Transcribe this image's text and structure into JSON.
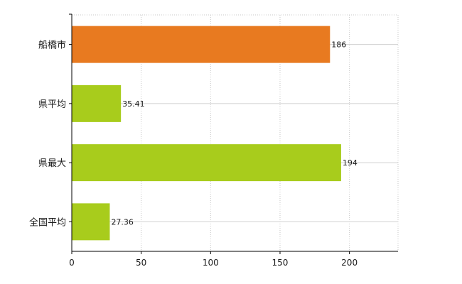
{
  "chart_data": {
    "type": "bar",
    "orientation": "horizontal",
    "categories": [
      "船橋市",
      "県平均",
      "県最大",
      "全国平均"
    ],
    "values": [
      186,
      35.41,
      194,
      27.36
    ],
    "value_labels": [
      "186",
      "35.41",
      "194",
      "27.36"
    ],
    "bar_colors": [
      "#e87a20",
      "#a8cc1c",
      "#a8cc1c",
      "#a8cc1c"
    ],
    "title": "",
    "xlabel": "",
    "ylabel": "",
    "xlim": [
      0,
      235
    ],
    "xticks": [
      0,
      50,
      100,
      150,
      200
    ],
    "xtick_labels": [
      "0",
      "50",
      "100",
      "150",
      "200"
    ],
    "grid": true,
    "legend": "none"
  }
}
